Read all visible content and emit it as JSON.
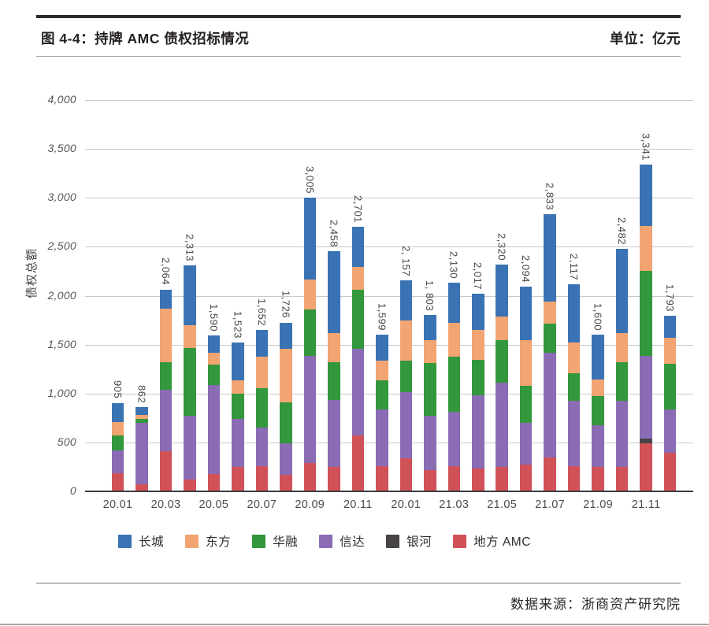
{
  "header": {
    "title": "图 4-4：持牌 AMC 债权招标情况",
    "unit": "单位：亿元"
  },
  "chart_data": {
    "type": "bar",
    "stacked": true,
    "title": "持牌 AMC 债权招标情况",
    "unit": "亿元",
    "ylabel": "债权总额",
    "ylim": [
      0,
      4000
    ],
    "ytick_interval": 500,
    "yticks": [
      "0",
      "500",
      "1,000",
      "1,500",
      "2,000",
      "2,500",
      "3,000",
      "3,500",
      "4,000"
    ],
    "grid": "horizontal",
    "legend_position": "bottom",
    "categories": [
      "20.01",
      "20.03",
      "20.05",
      "20.07",
      "20.09",
      "20.11",
      "20.01",
      "21.03",
      "21.05",
      "21.07",
      "21.09",
      "21.11"
    ],
    "bar_total_labels": [
      "905",
      "862",
      "2,064",
      "2,313",
      "1,590",
      "1,523",
      "1,652",
      "1,726",
      "3,005",
      "2,458",
      "2,701",
      "1,599",
      "2, 157",
      "1, 803",
      "2,130",
      "2,017",
      "2,320",
      "2,094",
      "2,833",
      "2,117",
      "1,600",
      "2,482",
      "3,341",
      "1,793"
    ],
    "bar_totals": [
      905,
      862,
      2064,
      2313,
      1590,
      1523,
      1652,
      1726,
      3005,
      2458,
      2701,
      1599,
      2157,
      1803,
      2130,
      2017,
      2320,
      2094,
      2833,
      2117,
      1600,
      2482,
      3341,
      1793
    ],
    "series": [
      {
        "name": "长城",
        "color": "#3A73B4",
        "values": [
          194,
          79,
          199,
          617,
          176,
          385,
          273,
          271,
          840,
          842,
          407,
          265,
          408,
          260,
          407,
          369,
          530,
          546,
          895,
          596,
          454,
          866,
          631,
          226
        ]
      },
      {
        "name": "东方",
        "color": "#F2A572",
        "values": [
          142,
          40,
          545,
          233,
          116,
          140,
          322,
          543,
          308,
          296,
          231,
          201,
          415,
          228,
          349,
          301,
          247,
          469,
          223,
          316,
          175,
          296,
          456,
          260
        ]
      },
      {
        "name": "华融",
        "color": "#33973B",
        "values": [
          148,
          45,
          282,
          693,
          214,
          255,
          407,
          423,
          470,
          389,
          608,
          296,
          322,
          545,
          563,
          362,
          430,
          376,
          296,
          282,
          295,
          397,
          867,
          470
        ]
      },
      {
        "name": "信达",
        "color": "#8A6CB4",
        "values": [
          236,
          626,
          630,
          649,
          904,
          496,
          390,
          317,
          1100,
          684,
          886,
          577,
          671,
          550,
          551,
          752,
          861,
          429,
          1073,
          663,
          429,
          671,
          850,
          443
        ]
      },
      {
        "name": "银河",
        "color": "#474347",
        "values": [
          0,
          0,
          0,
          0,
          0,
          0,
          0,
          0,
          0,
          0,
          0,
          0,
          0,
          0,
          0,
          0,
          0,
          0,
          0,
          0,
          0,
          0,
          44,
          0
        ]
      },
      {
        "name": "地方 AMC",
        "color": "#D05257",
        "values": [
          185,
          72,
          408,
          121,
          180,
          247,
          260,
          172,
          287,
          247,
          569,
          260,
          341,
          220,
          260,
          233,
          252,
          274,
          346,
          260,
          247,
          252,
          493,
          394
        ]
      }
    ],
    "stack_order_bottom_to_top": [
      "地方 AMC",
      "银河",
      "信达",
      "华融",
      "东方",
      "长城"
    ],
    "axis_colors": {
      "gridline": "#C9C9C9",
      "axis_line": "#3D3D3D"
    }
  },
  "footer": {
    "source": "数据来源：浙商资产研究院"
  }
}
